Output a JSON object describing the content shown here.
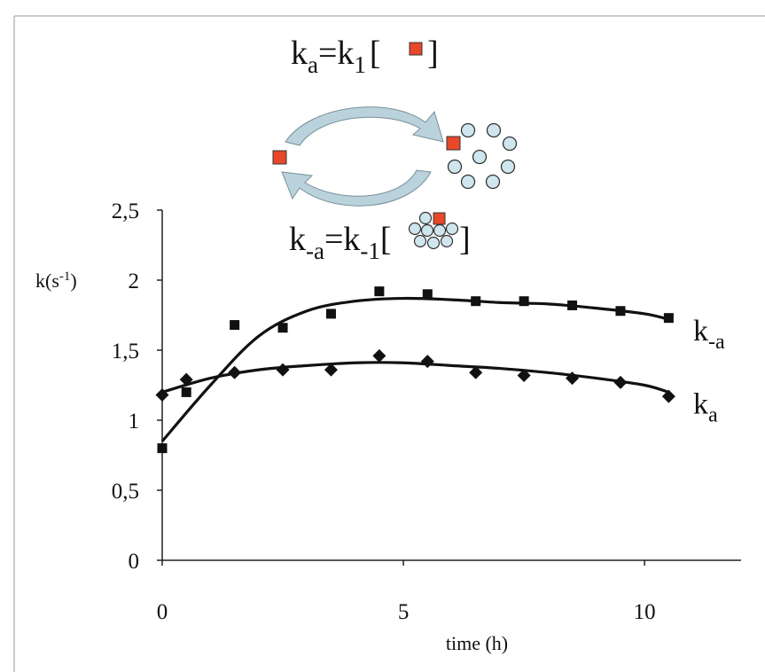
{
  "diagram": {
    "top_equation": [
      "k",
      "a",
      "=k",
      "1",
      "[",
      "]"
    ],
    "bottom_equation": [
      "k",
      "-a",
      "=k",
      "-1",
      "[",
      "]"
    ]
  },
  "chart_data": {
    "type": "scatter",
    "x_label": "time (h)",
    "y_label": [
      "k(s",
      "-1",
      ")"
    ],
    "xlim": [
      0,
      12
    ],
    "xticks": [
      0,
      5,
      10
    ],
    "ylim": [
      0,
      2.5
    ],
    "yticks": [
      0,
      {
        "value": 0.5,
        "label": "0,5"
      },
      1,
      {
        "value": 1.5,
        "label": "1,5"
      },
      2,
      {
        "value": 2.5,
        "label": "2,5"
      }
    ],
    "series": [
      {
        "name": [
          "k",
          "-a"
        ],
        "marker": "square",
        "color": "#111111",
        "x": [
          0,
          0.5,
          1.5,
          2.5,
          3.5,
          4.5,
          5.5,
          6.5,
          7.5,
          8.5,
          9.5,
          10.5
        ],
        "values": [
          0.8,
          1.2,
          1.68,
          1.66,
          1.76,
          1.92,
          1.9,
          1.85,
          1.85,
          1.82,
          1.78,
          1.73
        ],
        "trend": {
          "x": [
            0,
            1,
            2,
            3,
            4,
            5,
            6,
            7,
            8,
            9,
            10,
            10.5
          ],
          "values": [
            0.85,
            1.25,
            1.6,
            1.78,
            1.85,
            1.87,
            1.86,
            1.84,
            1.83,
            1.8,
            1.76,
            1.72
          ]
        }
      },
      {
        "name": [
          "k",
          "a"
        ],
        "marker": "diamond",
        "color": "#111111",
        "x": [
          0,
          0.5,
          1.5,
          2.5,
          3.5,
          4.5,
          5.5,
          6.5,
          7.5,
          8.5,
          9.5,
          10.5
        ],
        "values": [
          1.18,
          1.29,
          1.34,
          1.36,
          1.36,
          1.46,
          1.42,
          1.34,
          1.32,
          1.3,
          1.27,
          1.17
        ],
        "trend": {
          "x": [
            0,
            1,
            2,
            3,
            4,
            5,
            6,
            7,
            8,
            9,
            10,
            10.5
          ],
          "values": [
            1.2,
            1.3,
            1.36,
            1.39,
            1.41,
            1.41,
            1.39,
            1.37,
            1.34,
            1.3,
            1.25,
            1.2
          ]
        }
      }
    ]
  }
}
